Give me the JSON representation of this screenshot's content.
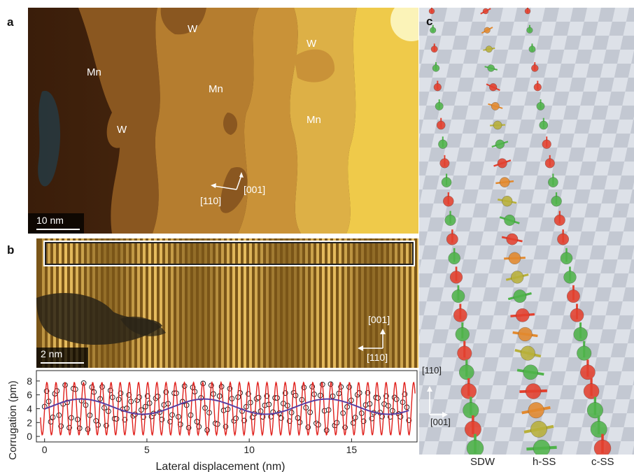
{
  "panels": {
    "a": {
      "letter": "a",
      "labels": [
        "W",
        "Mn",
        "W",
        "Mn",
        "W",
        "Mn"
      ],
      "dir_a": "[001]",
      "dir_b": "[1̅0]",
      "dir_b_text": "[110]",
      "scalebar": "10 nm"
    },
    "b": {
      "letter": "b",
      "dir_a": "[001]",
      "dir_b": "[110]",
      "scalebar": "2 nm"
    },
    "c": {
      "letter": "c",
      "dir_a": "[110]",
      "dir_b": "[001]",
      "column_labels": [
        "SDW",
        "h-SS",
        "c-SS"
      ]
    }
  },
  "chart_data": {
    "type": "scatter",
    "xlabel": "Lateral displacement (nm)",
    "ylabel": "Corrugation (pm)",
    "xlim": [
      -0.4,
      18.2
    ],
    "ylim": [
      -0.8,
      9.5
    ],
    "xticks": [
      0,
      5,
      10,
      15
    ],
    "yticks": [
      0,
      2,
      4,
      6,
      8
    ],
    "series": [
      {
        "kind": "points",
        "color": "#000000",
        "x_start": 0.0,
        "x_end": 17.8,
        "count": 178,
        "mean": 4.3
      },
      {
        "kind": "fit_fast",
        "color": "#e0201c",
        "mean": 4.0,
        "amplitude": 3.8,
        "period_nm": 0.448
      },
      {
        "kind": "envelope",
        "color": "#5b3fa0",
        "mean": 4.3,
        "amplitude": 1.1,
        "period_nm": 6.0,
        "phase_peak_nm": 1.8
      }
    ]
  },
  "colors": {
    "tip_gold": "#d9a13a",
    "sphere_red": "#e3402e",
    "sphere_green": "#4fb34a",
    "fit_red": "#e0201c",
    "envelope_purple": "#5b3fa0"
  }
}
